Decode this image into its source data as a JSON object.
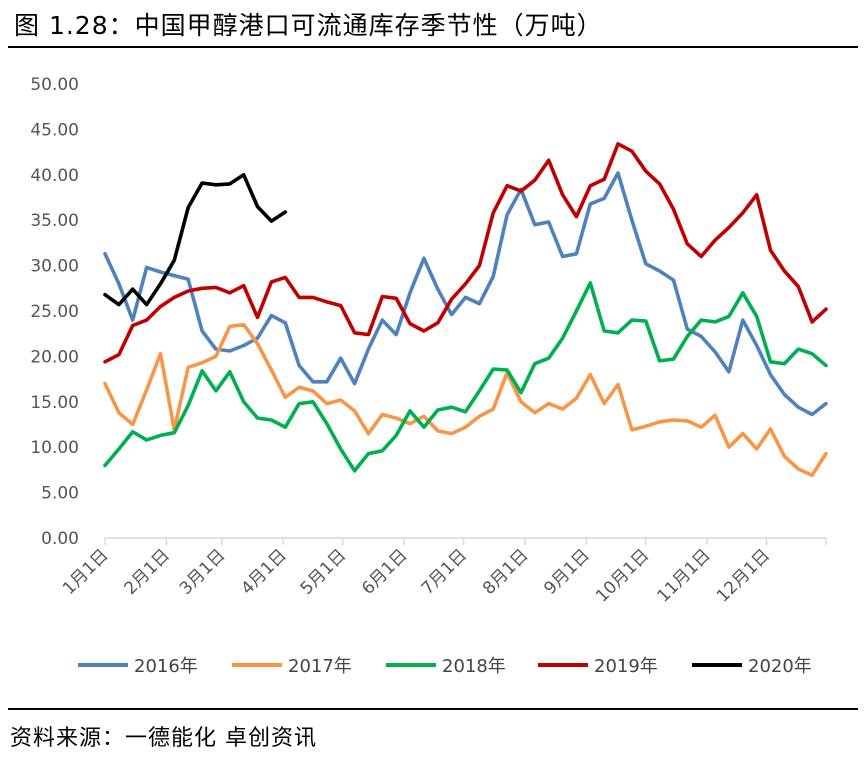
{
  "header": {
    "title": "图 1.28：中国甲醇港口可流通库存季节性（万吨）"
  },
  "footer": {
    "source": "资料来源：一德能化 卓创资讯"
  },
  "chart_data": {
    "type": "line",
    "title": "中国甲醇港口可流通库存季节性（万吨）",
    "unit": "万吨",
    "ylim": [
      0,
      50
    ],
    "y_ticks": [
      "0.00",
      "5.00",
      "10.00",
      "15.00",
      "20.00",
      "25.00",
      "30.00",
      "35.00",
      "40.00",
      "45.00",
      "50.00"
    ],
    "x_range": [
      1,
      53
    ],
    "x_ticks": [
      {
        "label": "1月1日",
        "week": 1
      },
      {
        "label": "2月1日",
        "week": 5.43
      },
      {
        "label": "3月1日",
        "week": 9.43
      },
      {
        "label": "4月1日",
        "week": 13.86
      },
      {
        "label": "5月1日",
        "week": 18.14
      },
      {
        "label": "6月1日",
        "week": 22.57
      },
      {
        "label": "7月1日",
        "week": 26.86
      },
      {
        "label": "8月1日",
        "week": 31.29
      },
      {
        "label": "9月1日",
        "week": 35.71
      },
      {
        "label": "10月1日",
        "week": 40
      },
      {
        "label": "11月1日",
        "week": 44.43
      },
      {
        "label": "12月1日",
        "week": 48.71
      }
    ],
    "grid": false,
    "legend_position": "bottom",
    "series": [
      {
        "name": "2016年",
        "color": "#4f81bd",
        "values": [
          31.3,
          28.0,
          24.0,
          29.8,
          29.3,
          28.9,
          28.5,
          22.8,
          20.8,
          20.6,
          21.2,
          22.0,
          24.5,
          23.7,
          19.0,
          17.2,
          17.2,
          19.8,
          17.0,
          20.8,
          24.0,
          22.4,
          27.0,
          30.8,
          27.4,
          24.6,
          26.5,
          25.8,
          28.8,
          35.6,
          38.4,
          34.5,
          34.8,
          31.0,
          31.3,
          36.8,
          37.4,
          40.2,
          35.0,
          30.2,
          29.4,
          28.4,
          23.0,
          22.2,
          20.5,
          18.3,
          24.0,
          21.2,
          18.0,
          15.8,
          14.4,
          13.6,
          14.8
        ]
      },
      {
        "name": "2017年",
        "color": "#f79646",
        "values": [
          17.0,
          13.8,
          12.5,
          16.3,
          20.3,
          11.9,
          18.8,
          19.3,
          20.0,
          23.3,
          23.5,
          21.4,
          18.5,
          15.5,
          16.6,
          16.2,
          14.8,
          15.2,
          14.0,
          11.5,
          13.6,
          13.2,
          12.6,
          13.4,
          11.8,
          11.5,
          12.2,
          13.4,
          14.2,
          18.2,
          15.0,
          13.8,
          14.8,
          14.2,
          15.4,
          18.0,
          14.8,
          16.9,
          11.9,
          12.3,
          12.8,
          13.0,
          12.9,
          12.2,
          13.5,
          10.0,
          11.5,
          9.8,
          12.0,
          9.0,
          7.6,
          6.9,
          9.3
        ]
      },
      {
        "name": "2018年",
        "color": "#00b050",
        "values": [
          8.0,
          9.8,
          11.7,
          10.8,
          11.3,
          11.6,
          14.6,
          18.4,
          16.2,
          18.3,
          15.0,
          13.2,
          13.0,
          12.2,
          14.8,
          15.0,
          12.6,
          9.8,
          7.4,
          9.3,
          9.6,
          11.3,
          14.0,
          12.2,
          14.1,
          14.4,
          13.9,
          16.2,
          18.6,
          18.5,
          16.0,
          19.2,
          19.8,
          22.0,
          25.0,
          28.1,
          22.8,
          22.6,
          24.0,
          23.9,
          19.5,
          19.7,
          22.2,
          24.0,
          23.8,
          24.4,
          27.0,
          24.4,
          19.4,
          19.2,
          20.8,
          20.3,
          19.0
        ]
      },
      {
        "name": "2019年",
        "color": "#c00000",
        "values": [
          19.4,
          20.2,
          23.4,
          24.0,
          25.5,
          26.5,
          27.2,
          27.5,
          27.6,
          27.0,
          27.8,
          24.3,
          28.2,
          28.7,
          26.5,
          26.5,
          26.0,
          25.6,
          22.6,
          22.4,
          26.6,
          26.4,
          23.6,
          22.8,
          23.7,
          26.3,
          28.0,
          30.0,
          35.8,
          38.8,
          38.2,
          39.4,
          41.6,
          37.8,
          35.4,
          38.8,
          39.5,
          43.4,
          42.6,
          40.4,
          39.0,
          36.2,
          32.4,
          31.0,
          32.8,
          34.2,
          35.8,
          37.8,
          31.7,
          29.4,
          27.7,
          23.8,
          25.2
        ]
      },
      {
        "name": "2020年",
        "color": "#000000",
        "values": [
          26.8,
          25.7,
          27.4,
          25.7,
          28.0,
          30.6,
          36.4,
          39.1,
          38.9,
          39.0,
          40.0,
          36.5,
          34.9,
          35.9
        ]
      }
    ]
  }
}
